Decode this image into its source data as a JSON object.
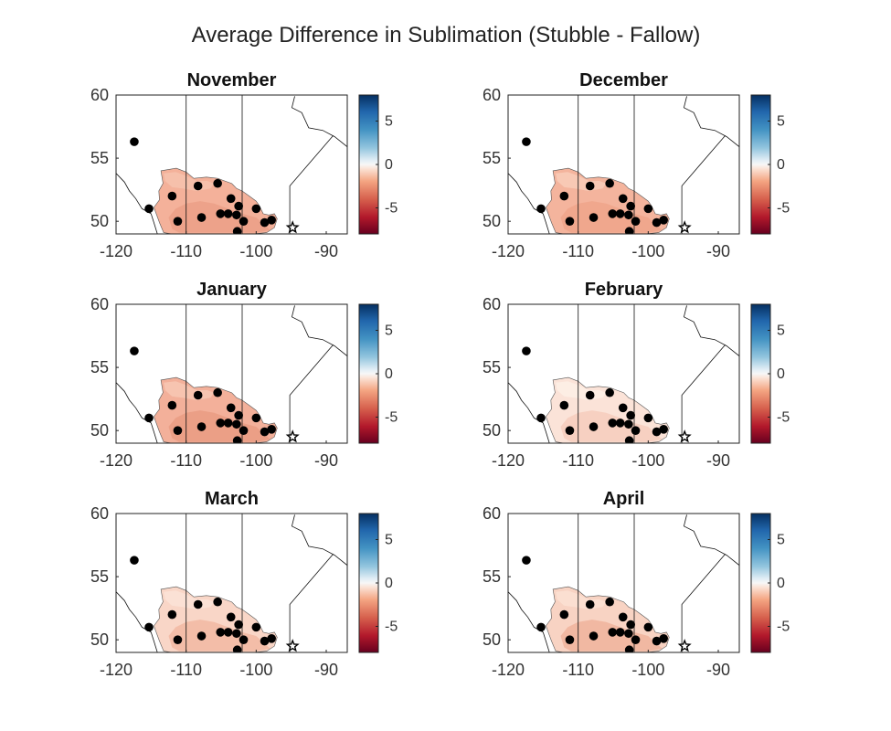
{
  "figure_title": "Average Difference in Sublimation (Stubble - Fallow)",
  "chart_data": [
    {
      "type": "heatmap",
      "title": "November",
      "fill_colors": [
        "#f4b19a",
        "#eba087",
        "#f6c2ad"
      ],
      "xlim": [
        -120,
        -87
      ],
      "ylim": [
        49,
        60
      ],
      "xticks": [
        "-120",
        "-110",
        "-100",
        "-90"
      ],
      "yticks": [
        "50",
        "55",
        "60"
      ],
      "colorbar": {
        "range": [
          -8,
          8
        ],
        "ticks": [
          "5",
          "0",
          "-5"
        ]
      }
    },
    {
      "type": "heatmap",
      "title": "December",
      "fill_colors": [
        "#f4b49d",
        "#eea48b",
        "#f8cbb8"
      ],
      "xlim": [
        -120,
        -87
      ],
      "ylim": [
        49,
        60
      ],
      "xticks": [
        "-120",
        "-110",
        "-100",
        "-90"
      ],
      "yticks": [
        "50",
        "55",
        "60"
      ],
      "colorbar": {
        "range": [
          -8,
          8
        ],
        "ticks": [
          "5",
          "0",
          "-5"
        ]
      }
    },
    {
      "type": "heatmap",
      "title": "January",
      "fill_colors": [
        "#f3b09a",
        "#e99c83",
        "#f7c6b2"
      ],
      "xlim": [
        -120,
        -87
      ],
      "ylim": [
        49,
        60
      ],
      "xticks": [
        "-120",
        "-110",
        "-100",
        "-90"
      ],
      "yticks": [
        "50",
        "55",
        "60"
      ],
      "colorbar": {
        "range": [
          -8,
          8
        ],
        "ticks": [
          "5",
          "0",
          "-5"
        ]
      }
    },
    {
      "type": "heatmap",
      "title": "February",
      "fill_colors": [
        "#fbe3d8",
        "#f6cdbd",
        "#fdeee6"
      ],
      "xlim": [
        -120,
        -87
      ],
      "ylim": [
        49,
        60
      ],
      "xticks": [
        "-120",
        "-110",
        "-100",
        "-90"
      ],
      "yticks": [
        "50",
        "55",
        "60"
      ],
      "colorbar": {
        "range": [
          -8,
          8
        ],
        "ticks": [
          "5",
          "0",
          "-5"
        ]
      }
    },
    {
      "type": "heatmap",
      "title": "March",
      "fill_colors": [
        "#f9d6c7",
        "#f2b8a2",
        "#fbe2d6"
      ],
      "xlim": [
        -120,
        -87
      ],
      "ylim": [
        49,
        60
      ],
      "xticks": [
        "-120",
        "-110",
        "-100",
        "-90"
      ],
      "yticks": [
        "50",
        "55",
        "60"
      ],
      "colorbar": {
        "range": [
          -8,
          8
        ],
        "ticks": [
          "5",
          "0",
          "-5"
        ]
      }
    },
    {
      "type": "heatmap",
      "title": "April",
      "fill_colors": [
        "#f8d3c3",
        "#f0b39c",
        "#fbe0d3"
      ],
      "xlim": [
        -120,
        -87
      ],
      "ylim": [
        49,
        60
      ],
      "xticks": [
        "-120",
        "-110",
        "-100",
        "-90"
      ],
      "yticks": [
        "50",
        "55",
        "60"
      ],
      "colorbar": {
        "range": [
          -8,
          8
        ],
        "ticks": [
          "5",
          "0",
          "-5"
        ]
      }
    }
  ],
  "stations": [
    [
      -117.4,
      56.3
    ],
    [
      -115.3,
      51.0
    ],
    [
      -112.0,
      52.0
    ],
    [
      -111.2,
      50.0
    ],
    [
      -108.3,
      52.8
    ],
    [
      -107.8,
      50.3
    ],
    [
      -105.5,
      53.0
    ],
    [
      -105.1,
      50.6
    ],
    [
      -104.0,
      50.6
    ],
    [
      -103.6,
      51.8
    ],
    [
      -102.8,
      50.5
    ],
    [
      -102.5,
      51.2
    ],
    [
      -102.7,
      49.2
    ],
    [
      -101.8,
      50.0
    ],
    [
      -100.0,
      51.0
    ],
    [
      -98.8,
      49.9
    ],
    [
      -97.8,
      50.1
    ]
  ],
  "marker_star": [
    -94.8,
    49.5
  ],
  "map_lines": {
    "ab_sk_border": [
      [
        -110.0,
        60.0
      ],
      [
        -110.0,
        49.0
      ]
    ],
    "sk_mb_border": [
      [
        -102.0,
        60.0
      ],
      [
        -102.0,
        49.0
      ]
    ],
    "mb_on_border": [
      [
        -95.2,
        49.0
      ],
      [
        -95.2,
        52.8
      ],
      [
        -89.0,
        56.8
      ]
    ],
    "hudson_bay_coast": [
      [
        -94.5,
        59.9
      ],
      [
        -94.9,
        59.0
      ],
      [
        -93.5,
        58.6
      ],
      [
        -92.5,
        57.4
      ],
      [
        -90.5,
        57.2
      ],
      [
        -88.8,
        56.7
      ],
      [
        -87.0,
        55.9
      ]
    ],
    "ab_bc_border": [
      [
        -120.0,
        53.8
      ],
      [
        -118.8,
        53.1
      ],
      [
        -118.1,
        52.4
      ],
      [
        -117.2,
        51.8
      ],
      [
        -116.3,
        51.0
      ],
      [
        -115.0,
        50.6
      ],
      [
        -114.6,
        49.9
      ],
      [
        -114.1,
        49.0
      ]
    ],
    "us_border": [
      [
        -120.0,
        49.0
      ],
      [
        -87.0,
        49.0
      ]
    ]
  },
  "region_outline": [
    [
      -113.2,
      49.1
    ],
    [
      -113.8,
      49.9
    ],
    [
      -114.6,
      51.1
    ],
    [
      -113.8,
      51.7
    ],
    [
      -113.9,
      52.4
    ],
    [
      -113.3,
      53.0
    ],
    [
      -113.6,
      54.0
    ],
    [
      -111.4,
      54.2
    ],
    [
      -110.0,
      53.9
    ],
    [
      -108.9,
      53.4
    ],
    [
      -107.1,
      53.5
    ],
    [
      -105.5,
      53.4
    ],
    [
      -104.5,
      53.2
    ],
    [
      -103.5,
      53.0
    ],
    [
      -102.8,
      52.6
    ],
    [
      -102.0,
      52.4
    ],
    [
      -101.0,
      52.0
    ],
    [
      -100.0,
      51.6
    ],
    [
      -99.5,
      51.2
    ],
    [
      -99.0,
      50.6
    ],
    [
      -98.2,
      50.5
    ],
    [
      -97.4,
      50.6
    ],
    [
      -97.0,
      50.2
    ],
    [
      -97.4,
      49.5
    ],
    [
      -98.5,
      49.1
    ],
    [
      -100.5,
      49.0
    ],
    [
      -104.0,
      49.0
    ],
    [
      -108.0,
      49.0
    ],
    [
      -110.0,
      49.0
    ],
    [
      -112.0,
      49.0
    ]
  ],
  "region_darker": [
    [
      -112.0,
      49.4
    ],
    [
      -112.5,
      50.3
    ],
    [
      -111.5,
      51.0
    ],
    [
      -110.0,
      51.4
    ],
    [
      -108.0,
      51.6
    ],
    [
      -106.0,
      51.4
    ],
    [
      -104.0,
      51.0
    ],
    [
      -102.0,
      50.6
    ],
    [
      -100.0,
      50.3
    ],
    [
      -99.0,
      49.8
    ],
    [
      -98.0,
      49.3
    ],
    [
      -100.0,
      49.1
    ],
    [
      -104.0,
      49.1
    ],
    [
      -108.0,
      49.1
    ],
    [
      -111.0,
      49.1
    ]
  ],
  "region_lighter": [
    [
      -113.0,
      53.2
    ],
    [
      -113.2,
      53.8
    ],
    [
      -111.5,
      53.9
    ],
    [
      -110.0,
      53.6
    ],
    [
      -108.5,
      53.2
    ],
    [
      -107.0,
      53.2
    ],
    [
      -106.0,
      53.0
    ],
    [
      -106.5,
      52.6
    ],
    [
      -108.5,
      52.4
    ],
    [
      -110.5,
      52.6
    ],
    [
      -112.0,
      52.7
    ]
  ]
}
